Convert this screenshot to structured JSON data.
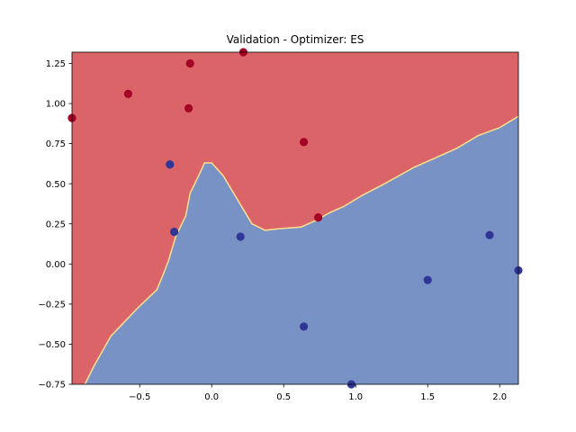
{
  "chart_data": {
    "type": "scatter",
    "title": "Validation - Optimizer: ES",
    "xlabel": "",
    "ylabel": "",
    "xlim": [
      -0.97,
      2.13
    ],
    "ylim": [
      -0.75,
      1.32
    ],
    "x_ticks": [
      -0.5,
      0.0,
      0.5,
      1.0,
      1.5,
      2.0
    ],
    "x_tick_labels": [
      "−0.5",
      "0.0",
      "0.5",
      "1.0",
      "1.5",
      "2.0"
    ],
    "y_ticks": [
      -0.75,
      -0.5,
      -0.25,
      0.0,
      0.25,
      0.5,
      0.75,
      1.0,
      1.25
    ],
    "y_tick_labels": [
      "−0.75",
      "−0.50",
      "−0.25",
      "0.00",
      "0.25",
      "0.50",
      "0.75",
      "1.00",
      "1.25"
    ],
    "grid": false,
    "background": "decision regions (class 0 red #db6468, class 1 blue #7992c6)",
    "decision_boundary": [
      [
        -0.88,
        -0.75
      ],
      [
        -0.82,
        -0.64
      ],
      [
        -0.7,
        -0.45
      ],
      [
        -0.52,
        -0.28
      ],
      [
        -0.38,
        -0.16
      ],
      [
        -0.33,
        -0.05
      ],
      [
        -0.3,
        0.02
      ],
      [
        -0.25,
        0.17
      ],
      [
        -0.18,
        0.3
      ],
      [
        -0.15,
        0.44
      ],
      [
        -0.08,
        0.57
      ],
      [
        -0.05,
        0.63
      ],
      [
        0.0,
        0.63
      ],
      [
        0.08,
        0.55
      ],
      [
        0.18,
        0.4
      ],
      [
        0.28,
        0.25
      ],
      [
        0.37,
        0.21
      ],
      [
        0.47,
        0.22
      ],
      [
        0.62,
        0.23
      ],
      [
        0.72,
        0.27
      ],
      [
        0.82,
        0.32
      ],
      [
        0.92,
        0.36
      ],
      [
        1.05,
        0.43
      ],
      [
        1.2,
        0.5
      ],
      [
        1.4,
        0.6
      ],
      [
        1.55,
        0.66
      ],
      [
        1.7,
        0.72
      ],
      [
        1.85,
        0.8
      ],
      [
        2.0,
        0.85
      ],
      [
        2.13,
        0.92
      ]
    ],
    "series": [
      {
        "color": "#a50026",
        "points": [
          [
            -0.97,
            0.91
          ],
          [
            -0.58,
            1.06
          ],
          [
            -0.15,
            1.25
          ],
          [
            0.22,
            1.32
          ],
          [
            -0.16,
            0.97
          ],
          [
            0.64,
            0.76
          ],
          [
            0.74,
            0.29
          ]
        ]
      },
      {
        "color": "#313695",
        "points": [
          [
            -0.29,
            0.62
          ],
          [
            -0.26,
            0.2
          ],
          [
            0.2,
            0.17
          ],
          [
            0.64,
            -0.39
          ],
          [
            0.97,
            -0.75
          ],
          [
            1.5,
            -0.1
          ],
          [
            1.93,
            0.18
          ],
          [
            2.13,
            -0.04
          ]
        ]
      }
    ],
    "colors": {
      "region_0": "#db6468",
      "region_1": "#7992c6",
      "boundary": "#fee090",
      "class_0": "#a50026",
      "class_1": "#313695"
    }
  }
}
